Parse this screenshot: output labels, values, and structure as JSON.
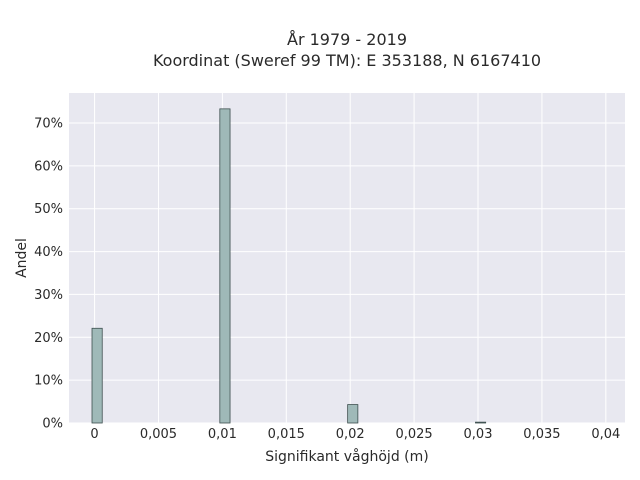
{
  "chart_data": {
    "type": "bar",
    "title_line1": "År 1979 - 2019",
    "title_line2": "Koordinat (Sweref 99 TM): E 353188, N 6167410",
    "xlabel": "Signifikant våghöjd (m)",
    "ylabel": "Andel",
    "x_ticks": [
      "0",
      "0,005",
      "0,01",
      "0,015",
      "0,02",
      "0,025",
      "0,03",
      "0,035",
      "0,04"
    ],
    "y_ticks": [
      "0%",
      "10%",
      "20%",
      "30%",
      "40%",
      "50%",
      "60%",
      "70%"
    ],
    "xlim": [
      -0.002,
      0.0415
    ],
    "ylim": [
      0,
      0.77
    ],
    "bin_width": 0.0008,
    "bars": [
      {
        "x": 0.0002,
        "value": 0.221
      },
      {
        "x": 0.0102,
        "value": 0.733
      },
      {
        "x": 0.0202,
        "value": 0.043
      },
      {
        "x": 0.0302,
        "value": 0.002
      }
    ],
    "grid": true,
    "colors": {
      "bar_fill": "#9fb9b8",
      "bar_edge": "#3d4f4e",
      "plot_bg": "#e8e8f0",
      "grid": "#ffffff"
    }
  }
}
